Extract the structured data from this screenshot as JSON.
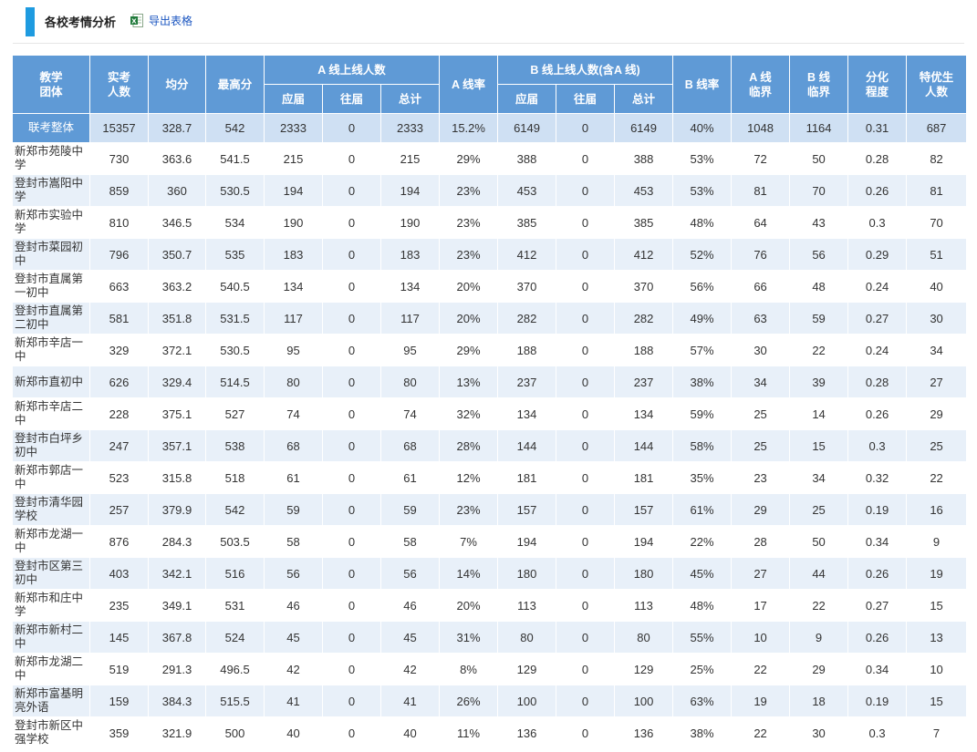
{
  "page": {
    "title": "各校考情分析",
    "export_label": "导出表格",
    "export_icon": "excel-icon"
  },
  "table": {
    "headers": {
      "group": "教学\n团体",
      "examinees": "实考\n人数",
      "avg": "均分",
      "max": "最高分",
      "a_line": "A 线上线人数",
      "a_rate": "A 线率",
      "b_line": "B 线上线人数(含A 线)",
      "b_rate": "B 线率",
      "a_critical": "A 线\n临界",
      "b_critical": "B 线\n临界",
      "differentiation": "分化\n程度",
      "top_students": "特优生\n人数",
      "sub_current": "应届",
      "sub_previous": "往届",
      "sub_total": "总计"
    },
    "overall": {
      "name": "联考整体",
      "values": [
        "15357",
        "328.7",
        "542",
        "2333",
        "0",
        "2333",
        "15.2%",
        "6149",
        "0",
        "6149",
        "40%",
        "1048",
        "1164",
        "0.31",
        "687"
      ]
    },
    "rows": [
      {
        "name": "新郑市苑陵中学",
        "values": [
          "730",
          "363.6",
          "541.5",
          "215",
          "0",
          "215",
          "29%",
          "388",
          "0",
          "388",
          "53%",
          "72",
          "50",
          "0.28",
          "82"
        ]
      },
      {
        "name": "登封市嵩阳中学",
        "values": [
          "859",
          "360",
          "530.5",
          "194",
          "0",
          "194",
          "23%",
          "453",
          "0",
          "453",
          "53%",
          "81",
          "70",
          "0.26",
          "81"
        ]
      },
      {
        "name": "新郑市实验中学",
        "values": [
          "810",
          "346.5",
          "534",
          "190",
          "0",
          "190",
          "23%",
          "385",
          "0",
          "385",
          "48%",
          "64",
          "43",
          "0.3",
          "70"
        ]
      },
      {
        "name": "登封市菜园初中",
        "values": [
          "796",
          "350.7",
          "535",
          "183",
          "0",
          "183",
          "23%",
          "412",
          "0",
          "412",
          "52%",
          "76",
          "56",
          "0.29",
          "51"
        ]
      },
      {
        "name": "登封市直属第一初中",
        "values": [
          "663",
          "363.2",
          "540.5",
          "134",
          "0",
          "134",
          "20%",
          "370",
          "0",
          "370",
          "56%",
          "66",
          "48",
          "0.24",
          "40"
        ]
      },
      {
        "name": "登封市直属第二初中",
        "values": [
          "581",
          "351.8",
          "531.5",
          "117",
          "0",
          "117",
          "20%",
          "282",
          "0",
          "282",
          "49%",
          "63",
          "59",
          "0.27",
          "30"
        ]
      },
      {
        "name": "新郑市辛店一中",
        "values": [
          "329",
          "372.1",
          "530.5",
          "95",
          "0",
          "95",
          "29%",
          "188",
          "0",
          "188",
          "57%",
          "30",
          "22",
          "0.24",
          "34"
        ]
      },
      {
        "name": "新郑市直初中",
        "values": [
          "626",
          "329.4",
          "514.5",
          "80",
          "0",
          "80",
          "13%",
          "237",
          "0",
          "237",
          "38%",
          "34",
          "39",
          "0.28",
          "27"
        ]
      },
      {
        "name": "新郑市辛店二中",
        "values": [
          "228",
          "375.1",
          "527",
          "74",
          "0",
          "74",
          "32%",
          "134",
          "0",
          "134",
          "59%",
          "25",
          "14",
          "0.26",
          "29"
        ]
      },
      {
        "name": "登封市白坪乡初中",
        "values": [
          "247",
          "357.1",
          "538",
          "68",
          "0",
          "68",
          "28%",
          "144",
          "0",
          "144",
          "58%",
          "25",
          "15",
          "0.3",
          "25"
        ]
      },
      {
        "name": "新郑市郭店一中",
        "values": [
          "523",
          "315.8",
          "518",
          "61",
          "0",
          "61",
          "12%",
          "181",
          "0",
          "181",
          "35%",
          "23",
          "34",
          "0.32",
          "22"
        ]
      },
      {
        "name": "登封市清华园学校",
        "values": [
          "257",
          "379.9",
          "542",
          "59",
          "0",
          "59",
          "23%",
          "157",
          "0",
          "157",
          "61%",
          "29",
          "25",
          "0.19",
          "16"
        ]
      },
      {
        "name": "新郑市龙湖一中",
        "values": [
          "876",
          "284.3",
          "503.5",
          "58",
          "0",
          "58",
          "7%",
          "194",
          "0",
          "194",
          "22%",
          "28",
          "50",
          "0.34",
          "9"
        ]
      },
      {
        "name": "登封市区第三初中",
        "values": [
          "403",
          "342.1",
          "516",
          "56",
          "0",
          "56",
          "14%",
          "180",
          "0",
          "180",
          "45%",
          "27",
          "44",
          "0.26",
          "19"
        ]
      },
      {
        "name": "新郑市和庄中学",
        "values": [
          "235",
          "349.1",
          "531",
          "46",
          "0",
          "46",
          "20%",
          "113",
          "0",
          "113",
          "48%",
          "17",
          "22",
          "0.27",
          "15"
        ]
      },
      {
        "name": "新郑市新村二中",
        "values": [
          "145",
          "367.8",
          "524",
          "45",
          "0",
          "45",
          "31%",
          "80",
          "0",
          "80",
          "55%",
          "10",
          "9",
          "0.26",
          "13"
        ]
      },
      {
        "name": "新郑市龙湖二中",
        "values": [
          "519",
          "291.3",
          "496.5",
          "42",
          "0",
          "42",
          "8%",
          "129",
          "0",
          "129",
          "25%",
          "22",
          "29",
          "0.34",
          "10"
        ]
      },
      {
        "name": "新郑市富基明亮外语",
        "values": [
          "159",
          "384.3",
          "515.5",
          "41",
          "0",
          "41",
          "26%",
          "100",
          "0",
          "100",
          "63%",
          "19",
          "18",
          "0.19",
          "15"
        ]
      },
      {
        "name": "登封市新区中强学校",
        "values": [
          "359",
          "321.9",
          "500",
          "40",
          "0",
          "40",
          "11%",
          "136",
          "0",
          "136",
          "38%",
          "22",
          "30",
          "0.3",
          "7"
        ]
      }
    ]
  },
  "colors": {
    "accent": "#1e9be0",
    "header_bg": "#5f9ad6",
    "overall_row_bg": "#cfe0f3",
    "alt_row_bg": "#e8f0f9",
    "link": "#1a55c0"
  }
}
